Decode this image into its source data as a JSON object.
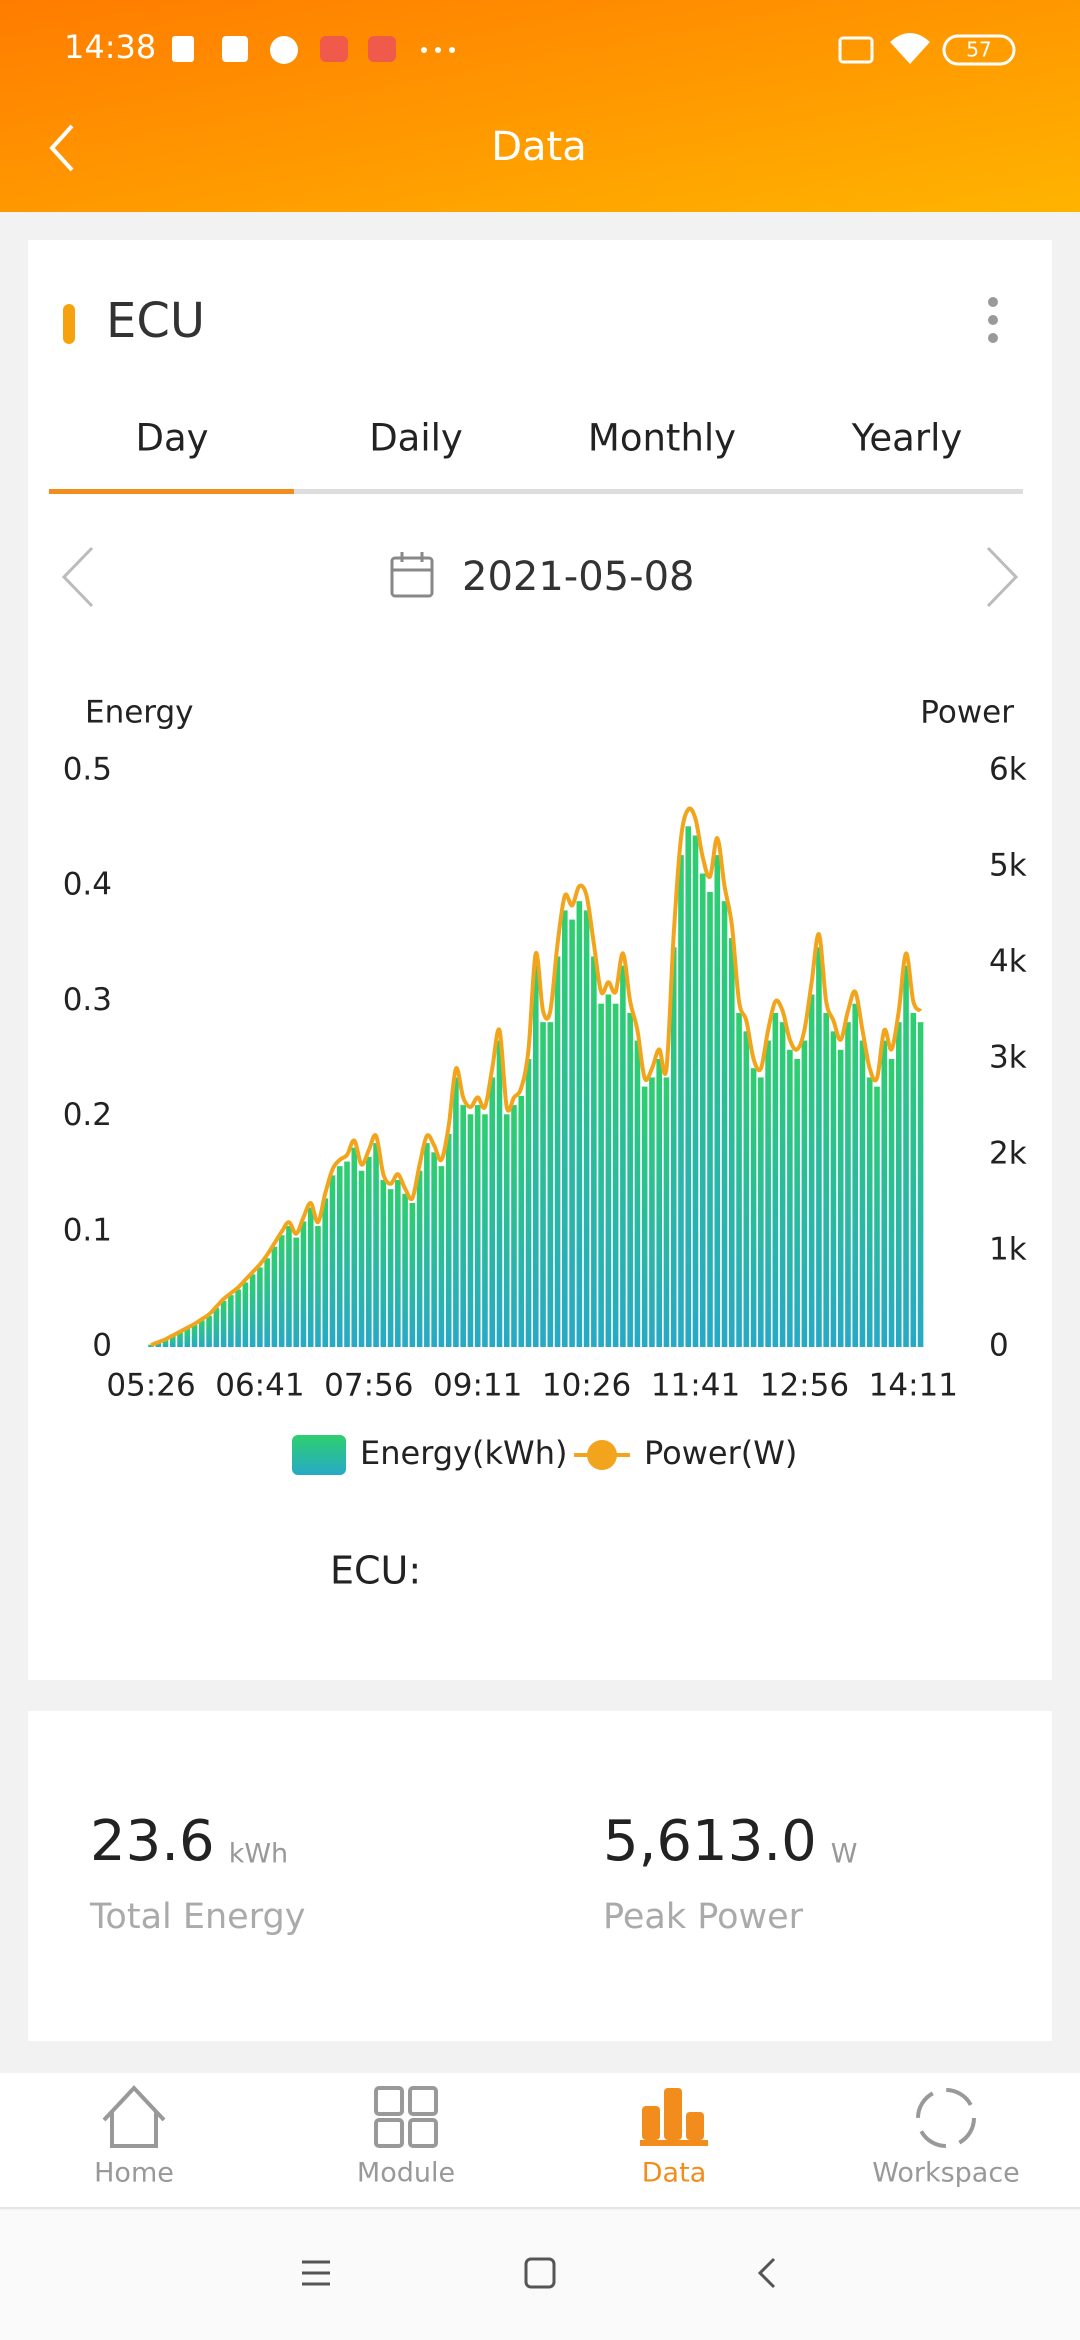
{
  "status_bar": {
    "time": "14:38",
    "battery": "57"
  },
  "header": {
    "title": "Data"
  },
  "card": {
    "title": "ECU",
    "tabs": [
      "Day",
      "Daily",
      "Monthly",
      "Yearly"
    ],
    "active_tab": 0,
    "date": "2021-05-08",
    "ecu_label": "ECU:"
  },
  "chart_data": {
    "type": "bar",
    "y_label": "Energy",
    "y2_label": "Power",
    "categories": [
      "05:26",
      null,
      null,
      null,
      null,
      null,
      null,
      null,
      null,
      null,
      null,
      null,
      null,
      null,
      null,
      "06:41",
      null,
      null,
      null,
      null,
      null,
      null,
      null,
      null,
      null,
      null,
      null,
      null,
      null,
      null,
      "07:56",
      null,
      null,
      null,
      null,
      null,
      null,
      null,
      null,
      null,
      null,
      null,
      null,
      null,
      null,
      "09:11",
      null,
      null,
      null,
      null,
      null,
      null,
      null,
      null,
      null,
      null,
      null,
      null,
      null,
      null,
      "10:26",
      null,
      null,
      null,
      null,
      null,
      null,
      null,
      null,
      null,
      null,
      null,
      null,
      null,
      null,
      "11:41",
      null,
      null,
      null,
      null,
      null,
      null,
      null,
      null,
      null,
      null,
      null,
      null,
      null,
      null,
      "12:56",
      null,
      null,
      null,
      null,
      null,
      null,
      null,
      null,
      null,
      null,
      null,
      null,
      null,
      null,
      "14:11",
      null
    ],
    "series": [
      {
        "name": "Energy(kWh)",
        "type": "bar",
        "color": "#2fc67a",
        "values": [
          0.002,
          0.004,
          0.006,
          0.01,
          0.013,
          0.016,
          0.019,
          0.023,
          0.027,
          0.034,
          0.04,
          0.045,
          0.05,
          0.056,
          0.063,
          0.069,
          0.077,
          0.087,
          0.097,
          0.105,
          0.095,
          0.109,
          0.121,
          0.105,
          0.129,
          0.149,
          0.157,
          0.161,
          0.173,
          0.153,
          0.165,
          0.177,
          0.145,
          0.137,
          0.145,
          0.133,
          0.125,
          0.153,
          0.177,
          0.169,
          0.157,
          0.185,
          0.234,
          0.21,
          0.202,
          0.21,
          0.202,
          0.234,
          0.266,
          0.202,
          0.21,
          0.218,
          0.25,
          0.331,
          0.282,
          0.282,
          0.339,
          0.379,
          0.371,
          0.387,
          0.379,
          0.339,
          0.298,
          0.306,
          0.298,
          0.331,
          0.29,
          0.266,
          0.226,
          0.234,
          0.25,
          0.234,
          0.347,
          0.427,
          0.452,
          0.444,
          0.411,
          0.395,
          0.427,
          0.387,
          0.355,
          0.29,
          0.274,
          0.242,
          0.234,
          0.266,
          0.29,
          0.282,
          0.258,
          0.25,
          0.266,
          0.306,
          0.347,
          0.29,
          0.274,
          0.258,
          0.282,
          0.298,
          0.266,
          0.234,
          0.226,
          0.266,
          0.25,
          0.282,
          0.331,
          0.29,
          0.282
        ]
      },
      {
        "name": "Power(W)",
        "type": "line",
        "axis": "y2",
        "color": "#f2a51c",
        "values": [
          20,
          50,
          80,
          120,
          160,
          200,
          240,
          290,
          340,
          420,
          500,
          560,
          620,
          700,
          780,
          860,
          960,
          1080,
          1200,
          1300,
          1180,
          1350,
          1500,
          1300,
          1600,
          1850,
          1950,
          2000,
          2150,
          1900,
          2050,
          2200,
          1800,
          1700,
          1800,
          1650,
          1550,
          1900,
          2200,
          2100,
          1950,
          2300,
          2900,
          2600,
          2500,
          2600,
          2500,
          2900,
          3300,
          2500,
          2600,
          2700,
          3100,
          4100,
          3500,
          3500,
          4200,
          4700,
          4600,
          4800,
          4700,
          4200,
          3700,
          3800,
          3700,
          4100,
          3600,
          3300,
          2800,
          2900,
          3100,
          2900,
          4300,
          5300,
          5600,
          5500,
          5100,
          4900,
          5300,
          4800,
          4400,
          3600,
          3400,
          3000,
          2900,
          3300,
          3600,
          3500,
          3200,
          3100,
          3300,
          3800,
          4300,
          3600,
          3400,
          3200,
          3500,
          3700,
          3300,
          2900,
          2800,
          3300,
          3100,
          3500,
          4100,
          3600,
          3500
        ]
      }
    ],
    "ylim": [
      0,
      0.5
    ],
    "yticks": [
      0,
      0.1,
      0.2,
      0.3,
      0.4,
      0.5
    ],
    "y2lim": [
      0,
      6000
    ],
    "y2ticks": [
      0,
      {
        "value": 1000,
        "label": "1k"
      },
      {
        "value": 2000,
        "label": "2k"
      },
      {
        "value": 3000,
        "label": "3k"
      },
      {
        "value": 4000,
        "label": "4k"
      },
      {
        "value": 5000,
        "label": "5k"
      },
      {
        "value": 6000,
        "label": "6k"
      }
    ],
    "grid": false,
    "legend": "bottom"
  },
  "stats": [
    {
      "value": "23.6",
      "unit": "kWh",
      "label": "Total Energy"
    },
    {
      "value": "5,613.0",
      "unit": "W",
      "label": "Peak Power"
    }
  ],
  "nav": {
    "items": [
      "Home",
      "Module",
      "Data",
      "Workspace"
    ],
    "active": 2
  }
}
